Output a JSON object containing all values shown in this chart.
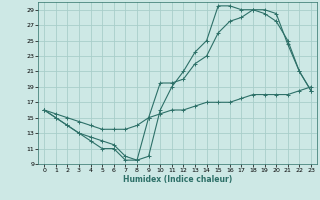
{
  "xlabel": "Humidex (Indice chaleur)",
  "xlim": [
    -0.5,
    23.5
  ],
  "ylim": [
    9,
    30
  ],
  "yticks": [
    9,
    11,
    13,
    15,
    17,
    19,
    21,
    23,
    25,
    27,
    29
  ],
  "xticks": [
    0,
    1,
    2,
    3,
    4,
    5,
    6,
    7,
    8,
    9,
    10,
    11,
    12,
    13,
    14,
    15,
    16,
    17,
    18,
    19,
    20,
    21,
    22,
    23
  ],
  "background_color": "#cde8e5",
  "grid_color": "#a8ceca",
  "line_color": "#2d7068",
  "line1_x": [
    0,
    1,
    2,
    3,
    4,
    5,
    6,
    7,
    8,
    9,
    10,
    11,
    12,
    13,
    14,
    15,
    16,
    17,
    18,
    19,
    20,
    21,
    22,
    23
  ],
  "line1_y": [
    16,
    15,
    14,
    13,
    12,
    11,
    11,
    9.5,
    9.5,
    15,
    19.5,
    19.5,
    20,
    22,
    23,
    26,
    27.5,
    28,
    29,
    29,
    28.5,
    24.5,
    21,
    18.5
  ],
  "line2_x": [
    0,
    1,
    2,
    3,
    4,
    5,
    6,
    7,
    8,
    9,
    10,
    11,
    12,
    13,
    14,
    15,
    16,
    17,
    18,
    19,
    20,
    21,
    22,
    23
  ],
  "line2_y": [
    16,
    15,
    14,
    13,
    12.5,
    12,
    11.5,
    10,
    9.5,
    10,
    16,
    19,
    21,
    23.5,
    25,
    29.5,
    29.5,
    29,
    29,
    28.5,
    27.5,
    25,
    21,
    18.5
  ],
  "line3_x": [
    0,
    1,
    2,
    3,
    4,
    5,
    6,
    7,
    8,
    9,
    10,
    11,
    12,
    13,
    14,
    15,
    16,
    17,
    18,
    19,
    20,
    21,
    22,
    23
  ],
  "line3_y": [
    16,
    15.5,
    15,
    14.5,
    14,
    13.5,
    13.5,
    13.5,
    14,
    15,
    15.5,
    16,
    16,
    16.5,
    17,
    17,
    17,
    17.5,
    18,
    18,
    18,
    18,
    18.5,
    19
  ]
}
